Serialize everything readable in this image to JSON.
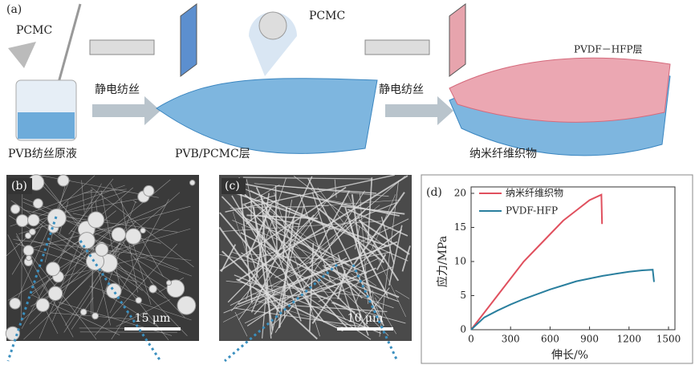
{
  "panel_a": {
    "label": "(a)",
    "pcmc_left": "PCMC",
    "pcmc_center": "PCMC",
    "pvdf_layer": "PVDF－HFP层",
    "spin_1": "静电纺丝",
    "spin_2": "静电纺丝",
    "solution": "PVB纺丝原液",
    "pvb_layer": "PVB/PCMC层",
    "fabric": "纳米纤维织物"
  },
  "panel_b": {
    "label": "(b)",
    "scale": "15 μm"
  },
  "panel_c": {
    "label": "(c)",
    "scale": "10 μm"
  },
  "chart_data": {
    "type": "line",
    "panel_label": "(d)",
    "x_label": "伸长/%",
    "y_label": "应力/MPa",
    "xlim": [
      0,
      1500
    ],
    "xticks": [
      0,
      300,
      600,
      900,
      1200,
      1500
    ],
    "ylim": [
      0,
      20
    ],
    "yticks": [
      0,
      5,
      10,
      15,
      20
    ],
    "legend": "upper left",
    "series": [
      {
        "name": "纳米纤维织物",
        "color": "#e0505e",
        "x": [
          0,
          100,
          200,
          300,
          400,
          500,
          600,
          700,
          800,
          900,
          990,
          995
        ],
        "values": [
          0,
          2.5,
          5,
          7.5,
          10,
          12,
          14,
          16,
          17.5,
          19,
          19.8,
          15.5
        ]
      },
      {
        "name": "PVDF-HFP",
        "color": "#2a7f9e",
        "x": [
          0,
          100,
          200,
          300,
          400,
          500,
          600,
          700,
          800,
          900,
          1000,
          1100,
          1200,
          1300,
          1380,
          1390
        ],
        "values": [
          0,
          1.8,
          2.8,
          3.7,
          4.5,
          5.2,
          5.9,
          6.5,
          7.1,
          7.5,
          7.9,
          8.2,
          8.5,
          8.7,
          8.8,
          7.0
        ]
      }
    ]
  }
}
